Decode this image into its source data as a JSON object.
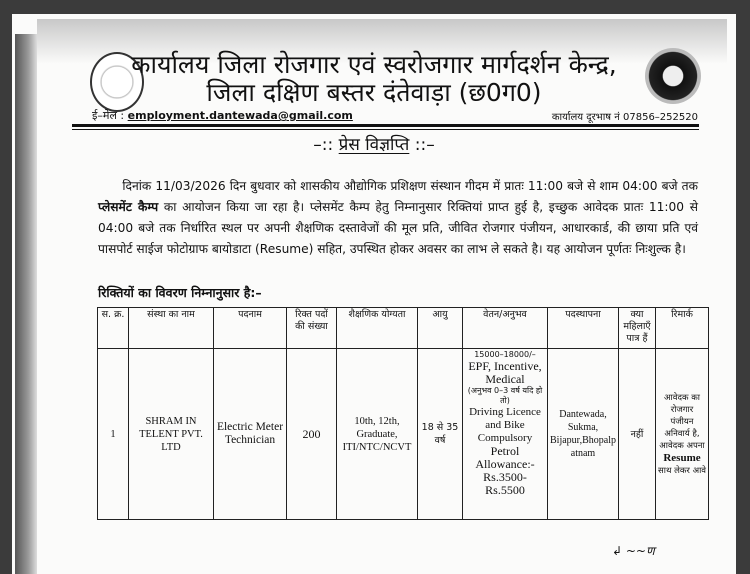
{
  "header": {
    "title_line1": "कार्यालय जिला रोजगार एवं स्वरोजगार मार्गदर्शन केन्द्र,",
    "title_line2": "जिला दक्षिण बस्तर दंतेवाड़ा (छ0ग0)",
    "email_label": "ई–मेल :",
    "email": "employment.dantewada@gmail.com",
    "phone_label": "कार्यालय दूरभाष नं",
    "phone": "07856–252520"
  },
  "press": {
    "title": "प्रेस विज्ञप्ति",
    "prefix": "–::",
    "suffix": "::–"
  },
  "body": {
    "p1": "दिनांक 11/03/2026 दिन बुधवार को शासकीय औद्योगिक प्रशिक्षण संस्थान गीदम में प्रातः 11:00 बजे से शाम 04:00 बजे तक ",
    "p1_bold": "प्लेसमेंट कैम्प",
    "p2": " का आयोजन किया जा रहा है। प्लेसमेंट कैम्प हेतु निम्नानुसार रिक्तियां प्राप्त हुई है, इच्छुक आवेदक प्रातः 11:00 से 04:00 बजे तक निर्धारित स्थल पर अपनी शैक्षणिक दस्तावेजों की मूल प्रति, जीवित रोजगार पंजीयन, आधारकार्ड, की छाया प्रति एवं पासपोर्ट साईज फोटोग्राफ बायोडाटा (Resume) सहित, उपस्थित होकर अवसर का लाभ ले सकते है। यह आयोजन पूर्णतः निःशुल्क है।",
    "subheading": "रिक्तियों का विवरण निम्नानुसार है:–"
  },
  "table": {
    "headers": [
      "स. क्र.",
      "संस्था का नाम",
      "पदनाम",
      "रिक्त पदों की संख्या",
      "शैक्षणिक योग्यता",
      "आयु",
      "वेतन/अनुभव",
      "पदस्थापना",
      "क्या महिलाएँ पात्र हैं",
      "रिमार्क"
    ],
    "rows": [
      {
        "sr": "1",
        "company": "SHRAM IN TELENT PVT. LTD",
        "post": "Electric Meter Technician",
        "vacancies": "200",
        "qualification": "10th, 12th, Graduate, ITI/NTC/NCVT",
        "age": "18 से 35 वर्ष",
        "salary": "15000–18000/–",
        "salary_benefits": "EPF, Incentive, Medical",
        "experience": "(अनुभव 0–3 वर्ष यदि हो तो)",
        "salary_req": "Driving Licence and Bike Compulsory",
        "petrol": "Petrol Allowance:- Rs.3500- Rs.5500",
        "location": "Dantewada, Sukma, Bijapur,Bhopalpatnam",
        "women": "नहीं",
        "remark": "आवेदक का रोजगार पंजीयन अनिवार्य है, आवेदक अपना",
        "remark_bold": "Resume",
        "remark_end": "साथ लेकर आवे"
      }
    ]
  },
  "signature": "signature"
}
